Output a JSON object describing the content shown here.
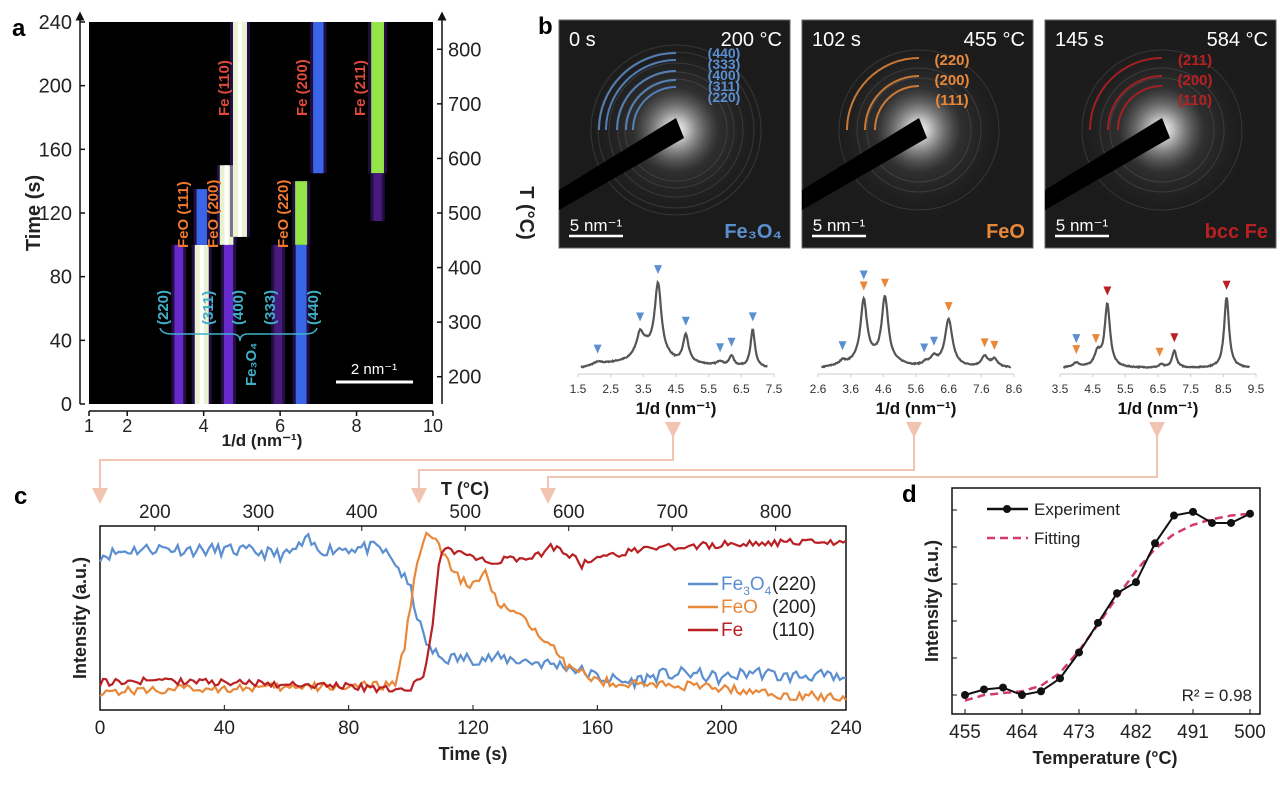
{
  "panels": {
    "a": {
      "letter": "a"
    },
    "b": {
      "letter": "b"
    },
    "c": {
      "letter": "c"
    },
    "d": {
      "letter": "d"
    }
  },
  "colors": {
    "fe3o4": "#5b8fd0",
    "feo": "#e8883a",
    "fe": "#b82023",
    "fit": "#d33a6a",
    "arrow": "#f0c4b0",
    "heat_label_fe": "#e04a3a",
    "heat_label_feo": "#f07a30",
    "heat_label_fe3o4": "#3fb0c8"
  },
  "chart_data": [
    {
      "id": "a",
      "type": "heatmap",
      "title": "",
      "xlabel": "1/d (nm⁻¹)",
      "ylabel": "Time (s)",
      "y2label": "T (°C)",
      "xlim": [
        1,
        10
      ],
      "ylim": [
        0,
        240
      ],
      "y2lim": [
        150,
        850
      ],
      "xticks": [
        1,
        2,
        4,
        6,
        8,
        10
      ],
      "yticks": [
        0,
        40,
        80,
        120,
        160,
        200,
        240
      ],
      "y2ticks": [
        200,
        300,
        400,
        500,
        600,
        700,
        800
      ],
      "scale_bar": "2 nm⁻¹",
      "bands": [
        {
          "x": 3.35,
          "t0": 0,
          "t1": 100,
          "intensity": 0.35,
          "phase": "Fe3O4"
        },
        {
          "x": 3.95,
          "t0": 0,
          "t1": 100,
          "intensity": 1.0,
          "phase": "Fe3O4"
        },
        {
          "x": 3.95,
          "t0": 100,
          "t1": 135,
          "intensity": 0.55,
          "phase": "FeO"
        },
        {
          "x": 4.65,
          "t0": 0,
          "t1": 100,
          "intensity": 0.4,
          "phase": "Fe3O4"
        },
        {
          "x": 4.6,
          "t0": 100,
          "t1": 150,
          "intensity": 0.95,
          "phase": "FeO"
        },
        {
          "x": 4.95,
          "t0": 105,
          "t1": 240,
          "intensity": 1.0,
          "phase": "Fe"
        },
        {
          "x": 5.95,
          "t0": 0,
          "t1": 100,
          "intensity": 0.25,
          "phase": "Fe3O4"
        },
        {
          "x": 6.55,
          "t0": 0,
          "t1": 100,
          "intensity": 0.6,
          "phase": "Fe3O4"
        },
        {
          "x": 6.55,
          "t0": 100,
          "t1": 140,
          "intensity": 0.75,
          "phase": "FeO"
        },
        {
          "x": 7.0,
          "t0": 145,
          "t1": 240,
          "intensity": 0.55,
          "phase": "Fe"
        },
        {
          "x": 8.55,
          "t0": 145,
          "t1": 240,
          "intensity": 0.85,
          "phase": "Fe"
        },
        {
          "x": 8.55,
          "t0": 115,
          "t1": 145,
          "intensity": 0.3,
          "phase": "Fe"
        }
      ],
      "annotations": {
        "fe": [
          "Fe (110)",
          "Fe (200)",
          "Fe (211)"
        ],
        "feo": [
          "FeO (111)",
          "FeO (200)",
          "FeO (220)"
        ],
        "fe3o4": [
          "(220)",
          "(311)",
          "(400)",
          "(333)",
          "(440)"
        ],
        "fe3o4_group": "Fe₃O₄"
      }
    },
    {
      "id": "b",
      "type": "image+line",
      "patterns": [
        {
          "time": "0 s",
          "temp": "200 °C",
          "phase": "Fe₃O₄",
          "phase_key": "fe3o4",
          "scale_bar": "5 nm⁻¹",
          "rings": [
            "(440)",
            "(333)",
            "(400)",
            "(311)",
            "(220)"
          ]
        },
        {
          "time": "102 s",
          "temp": "455 °C",
          "phase": "FeO",
          "phase_key": "feo",
          "scale_bar": "5 nm⁻¹",
          "rings": [
            "(220)",
            "(200)",
            "(111)"
          ]
        },
        {
          "time": "145 s",
          "temp": "584 °C",
          "phase": "bcc Fe",
          "phase_key": "fe",
          "scale_bar": "5 nm⁻¹",
          "rings": [
            "(211)",
            "(200)",
            "(110)"
          ]
        }
      ],
      "profiles": [
        {
          "xlabel": "1/d (nm⁻¹)",
          "xlim": [
            1.5,
            7.5
          ],
          "xticks": [
            "1.5",
            "2.5",
            "3.5",
            "4.5",
            "5.5",
            "6.5",
            "7.5"
          ],
          "peaks": [
            {
              "x": 2.1,
              "h": 0.04,
              "w": 0.2
            },
            {
              "x": 3.4,
              "h": 0.25,
              "w": 0.12
            },
            {
              "x": 3.95,
              "h": 0.9,
              "w": 0.12
            },
            {
              "x": 4.8,
              "h": 0.35,
              "w": 0.1
            },
            {
              "x": 5.85,
              "h": 0.05,
              "w": 0.1
            },
            {
              "x": 6.2,
              "h": 0.13,
              "w": 0.08
            },
            {
              "x": 6.85,
              "h": 0.48,
              "w": 0.08
            }
          ],
          "baseline": [
            [
              1.6,
              0.0
            ],
            [
              3.0,
              0.1
            ],
            [
              3.6,
              0.25
            ],
            [
              4.5,
              0.08
            ],
            [
              5.5,
              0.04
            ],
            [
              7.3,
              0.0
            ]
          ],
          "markers": [
            {
              "x": 2.1,
              "phases": [
                "fe3o4"
              ]
            },
            {
              "x": 3.4,
              "phases": [
                "fe3o4"
              ]
            },
            {
              "x": 3.95,
              "phases": [
                "fe3o4"
              ]
            },
            {
              "x": 4.8,
              "phases": [
                "fe3o4"
              ]
            },
            {
              "x": 5.85,
              "phases": [
                "fe3o4"
              ]
            },
            {
              "x": 6.2,
              "phases": [
                "fe3o4"
              ]
            },
            {
              "x": 6.85,
              "phases": [
                "fe3o4"
              ]
            }
          ]
        },
        {
          "xlabel": "1/d (nm⁻¹)",
          "xlim": [
            2.6,
            8.6
          ],
          "xticks": [
            "2.6",
            "3.6",
            "4.6",
            "5.6",
            "6.6",
            "7.6",
            "8.6"
          ],
          "peaks": [
            {
              "x": 3.35,
              "h": 0.05,
              "w": 0.08
            },
            {
              "x": 4.0,
              "h": 0.78,
              "w": 0.12
            },
            {
              "x": 4.65,
              "h": 0.82,
              "w": 0.12
            },
            {
              "x": 5.9,
              "h": 0.04,
              "w": 0.1
            },
            {
              "x": 6.15,
              "h": 0.1,
              "w": 0.12
            },
            {
              "x": 6.6,
              "h": 0.6,
              "w": 0.14
            },
            {
              "x": 7.7,
              "h": 0.13,
              "w": 0.12
            },
            {
              "x": 8.0,
              "h": 0.1,
              "w": 0.12
            }
          ],
          "baseline": [
            [
              2.7,
              0.0
            ],
            [
              4.3,
              0.1
            ],
            [
              5.5,
              0.02
            ],
            [
              8.5,
              0.0
            ]
          ],
          "markers": [
            {
              "x": 3.35,
              "phases": [
                "fe3o4"
              ]
            },
            {
              "x": 4.0,
              "phases": [
                "fe3o4",
                "feo"
              ]
            },
            {
              "x": 4.65,
              "phases": [
                "feo"
              ]
            },
            {
              "x": 5.85,
              "phases": [
                "fe3o4"
              ]
            },
            {
              "x": 6.15,
              "phases": [
                "fe3o4"
              ]
            },
            {
              "x": 6.6,
              "phases": [
                "feo"
              ]
            },
            {
              "x": 7.7,
              "phases": [
                "feo"
              ]
            },
            {
              "x": 8.0,
              "phases": [
                "feo"
              ]
            }
          ]
        },
        {
          "xlabel": "1/d (nm⁻¹)",
          "xlim": [
            3.5,
            9.5
          ],
          "xticks": [
            "3.5",
            "4.5",
            "5.5",
            "6.5",
            "7.5",
            "8.5",
            "9.5"
          ],
          "peaks": [
            {
              "x": 4.0,
              "h": 0.06,
              "w": 0.12
            },
            {
              "x": 4.65,
              "h": 0.18,
              "w": 0.12
            },
            {
              "x": 4.95,
              "h": 0.8,
              "w": 0.1
            },
            {
              "x": 6.6,
              "h": 0.04,
              "w": 0.08
            },
            {
              "x": 7.0,
              "h": 0.22,
              "w": 0.08
            },
            {
              "x": 8.6,
              "h": 0.9,
              "w": 0.09
            }
          ],
          "baseline": [
            [
              3.6,
              0.0
            ],
            [
              9.3,
              0.0
            ]
          ],
          "markers": [
            {
              "x": 4.0,
              "phases": [
                "fe3o4",
                "feo"
              ]
            },
            {
              "x": 4.6,
              "phases": [
                "feo"
              ]
            },
            {
              "x": 4.95,
              "phases": [
                "fe"
              ]
            },
            {
              "x": 6.55,
              "phases": [
                "feo"
              ]
            },
            {
              "x": 7.0,
              "phases": [
                "fe"
              ]
            },
            {
              "x": 8.6,
              "phases": [
                "fe"
              ]
            }
          ]
        }
      ]
    },
    {
      "id": "c",
      "type": "line",
      "xlabel": "Time (s)",
      "ylabel": "Intensity (a.u.)",
      "x2label": "T (°C)",
      "xlim": [
        0,
        240
      ],
      "ylim": [
        0,
        1
      ],
      "xticks": [
        0,
        40,
        80,
        120,
        160,
        200,
        240
      ],
      "x2ticks": [
        200,
        300,
        400,
        500,
        600,
        700,
        800
      ],
      "x2lim": [
        147,
        868
      ],
      "legend_position": "right",
      "series": [
        {
          "name": "Fe₃O₄",
          "hkl": "(220)",
          "key": "fe3o4",
          "x": [
            0,
            10,
            20,
            30,
            40,
            50,
            60,
            67,
            70,
            80,
            90,
            95,
            100,
            103,
            106,
            110,
            120,
            130,
            140,
            150,
            160,
            170,
            180,
            190,
            200,
            210,
            220,
            230,
            240
          ],
          "y": [
            0.84,
            0.87,
            0.88,
            0.87,
            0.87,
            0.86,
            0.84,
            0.92,
            0.87,
            0.88,
            0.88,
            0.8,
            0.65,
            0.45,
            0.33,
            0.28,
            0.28,
            0.28,
            0.26,
            0.24,
            0.18,
            0.15,
            0.19,
            0.2,
            0.17,
            0.21,
            0.18,
            0.19,
            0.16
          ],
          "noise": 0.035
        },
        {
          "name": "FeO",
          "hkl": "(200)",
          "key": "feo",
          "x": [
            0,
            20,
            40,
            60,
            80,
            90,
            95,
            98,
            102,
            105,
            108,
            112,
            116,
            120,
            124,
            128,
            132,
            140,
            146,
            150,
            160,
            170,
            180,
            200,
            220,
            240
          ],
          "y": [
            0.1,
            0.11,
            0.12,
            0.12,
            0.13,
            0.13,
            0.14,
            0.35,
            0.82,
            0.95,
            0.92,
            0.8,
            0.7,
            0.68,
            0.74,
            0.57,
            0.55,
            0.43,
            0.36,
            0.24,
            0.16,
            0.14,
            0.14,
            0.12,
            0.08,
            0.07
          ],
          "noise": 0.025
        },
        {
          "name": "Fe",
          "hkl": "(110)",
          "key": "fe",
          "x": [
            0,
            20,
            40,
            60,
            80,
            90,
            100,
            104,
            107,
            109,
            111,
            113,
            120,
            125,
            130,
            140,
            145,
            150,
            155,
            160,
            170,
            180,
            200,
            220,
            240
          ],
          "y": [
            0.15,
            0.16,
            0.15,
            0.14,
            0.13,
            0.11,
            0.12,
            0.18,
            0.45,
            0.8,
            0.88,
            0.87,
            0.83,
            0.8,
            0.82,
            0.83,
            0.89,
            0.86,
            0.79,
            0.82,
            0.86,
            0.88,
            0.9,
            0.91,
            0.91
          ],
          "noise": 0.02
        }
      ]
    },
    {
      "id": "d",
      "type": "line",
      "xlabel": "Temperature (°C)",
      "ylabel": "Intensity (a.u.)",
      "xlim": [
        455,
        500
      ],
      "ylim": [
        0,
        1
      ],
      "xticks": [
        455,
        464,
        473,
        482,
        491,
        500
      ],
      "legend_position": "top-left",
      "annotation": "R² = 0.98",
      "series": [
        {
          "name": "Experiment",
          "style": "solid-markers",
          "x": [
            455,
            458,
            461,
            464,
            467,
            470,
            473,
            476,
            479,
            482,
            485,
            488,
            491,
            494,
            497,
            500
          ],
          "y": [
            0.0,
            0.03,
            0.04,
            0.0,
            0.02,
            0.09,
            0.23,
            0.39,
            0.55,
            0.61,
            0.82,
            0.97,
            0.99,
            0.93,
            0.93,
            0.98
          ]
        },
        {
          "name": "Fitting",
          "style": "dashed",
          "x": [
            455,
            458,
            461,
            464,
            467,
            470,
            473,
            476,
            479,
            482,
            485,
            488,
            491,
            494,
            497,
            500
          ],
          "y": [
            -0.03,
            0.0,
            0.01,
            0.02,
            0.05,
            0.12,
            0.24,
            0.38,
            0.53,
            0.67,
            0.79,
            0.87,
            0.92,
            0.95,
            0.97,
            0.98
          ]
        }
      ]
    }
  ]
}
